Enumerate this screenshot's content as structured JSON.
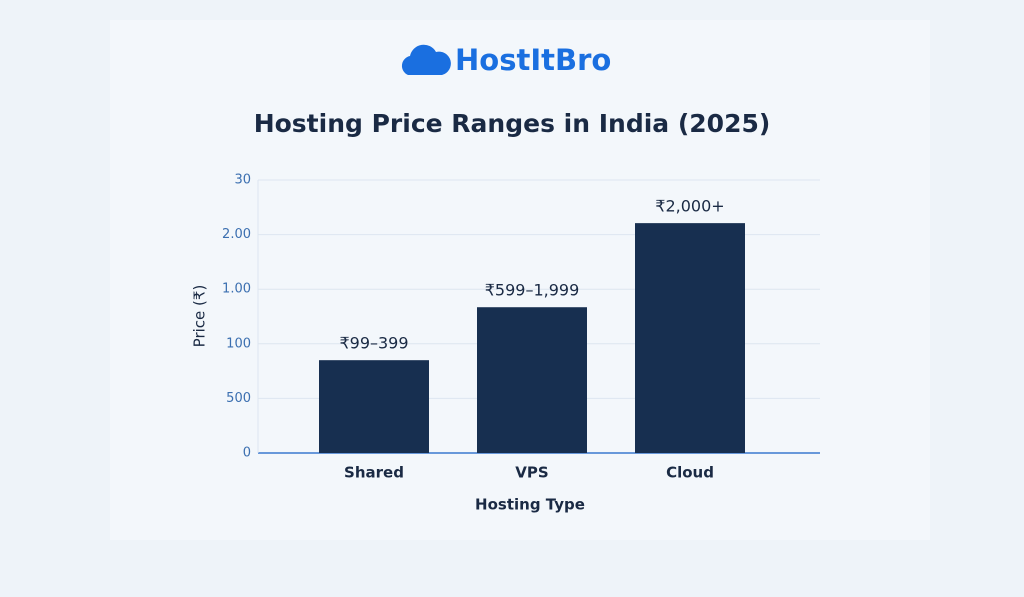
{
  "brand": "HostItBro",
  "chart_data": {
    "type": "bar",
    "title": "Hosting Price Ranges in India (2025)",
    "x_label": "Hosting Type",
    "y_label": "Price (₹)",
    "categories": [
      "Shared",
      "VPS",
      "Cloud"
    ],
    "values": [
      1.7,
      2.67,
      4.21
    ],
    "bar_labels": [
      "₹99–399",
      "₹599–1,999",
      "₹2,000+"
    ],
    "color": "#172f50",
    "ylim": [
      0,
      5
    ],
    "yticks": [
      0,
      {
        "value": 1,
        "label": "500"
      },
      {
        "value": 2,
        "label": "100"
      },
      {
        "value": 3,
        "label": "1.00"
      },
      {
        "value": 4,
        "label": "2.00"
      },
      {
        "value": 5,
        "label": "30"
      }
    ],
    "grid": true
  }
}
